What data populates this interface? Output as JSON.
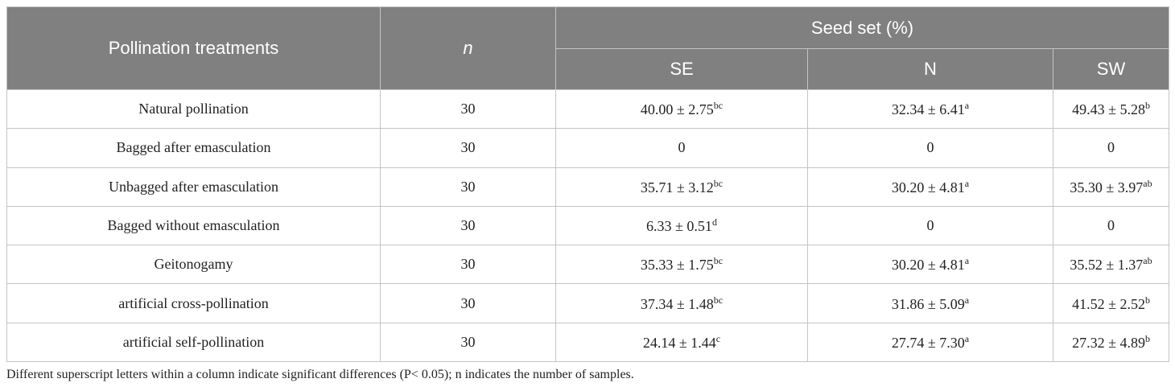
{
  "table": {
    "header": {
      "treatment": "Pollination treatments",
      "n": "n",
      "group": "Seed set (%)",
      "columns": [
        "SE",
        "N",
        "SW"
      ]
    },
    "rows": [
      {
        "treatment": "Natural pollination",
        "n": "30",
        "cells": [
          {
            "text": "40.00 ± 2.75",
            "sup": "bc"
          },
          {
            "text": "32.34 ± 6.41",
            "sup": "a"
          },
          {
            "text": "49.43 ± 5.28",
            "sup": "b"
          }
        ]
      },
      {
        "treatment": "Bagged after emasculation",
        "n": "30",
        "cells": [
          {
            "text": "0"
          },
          {
            "text": "0"
          },
          {
            "text": "0"
          }
        ]
      },
      {
        "treatment": "Unbagged after emasculation",
        "n": "30",
        "cells": [
          {
            "text": "35.71 ± 3.12",
            "sup": "bc"
          },
          {
            "text": "30.20 ± 4.81",
            "sup": "a"
          },
          {
            "text": "35.30 ± 3.97",
            "sup": "ab"
          }
        ]
      },
      {
        "treatment": "Bagged without emasculation",
        "n": "30",
        "cells": [
          {
            "text": "6.33 ± 0.51",
            "sup": "d"
          },
          {
            "text": "0"
          },
          {
            "text": "0"
          }
        ]
      },
      {
        "treatment": "Geitonogamy",
        "n": "30",
        "cells": [
          {
            "text": "35.33 ± 1.75",
            "sup": "bc"
          },
          {
            "text": "30.20 ± 4.81",
            "sup": "a"
          },
          {
            "text": "35.52 ± 1.37",
            "sup": "ab"
          }
        ]
      },
      {
        "treatment": "artificial cross-pollination",
        "n": "30",
        "cells": [
          {
            "text": "37.34 ± 1.48",
            "sup": "bc"
          },
          {
            "text": "31.86 ± 5.09",
            "sup": "a"
          },
          {
            "text": "41.52 ± 2.52",
            "sup": "b"
          }
        ]
      },
      {
        "treatment": "artificial self-pollination",
        "n": "30",
        "cells": [
          {
            "text": "24.14 ± 1.44",
            "sup": "c"
          },
          {
            "text": "27.74 ± 7.30",
            "sup": "a"
          },
          {
            "text": "27.32 ± 4.89",
            "sup": "b"
          }
        ]
      }
    ],
    "footnote": "Different superscript letters within a column indicate significant differences (P< 0.05); n indicates the number of samples."
  }
}
